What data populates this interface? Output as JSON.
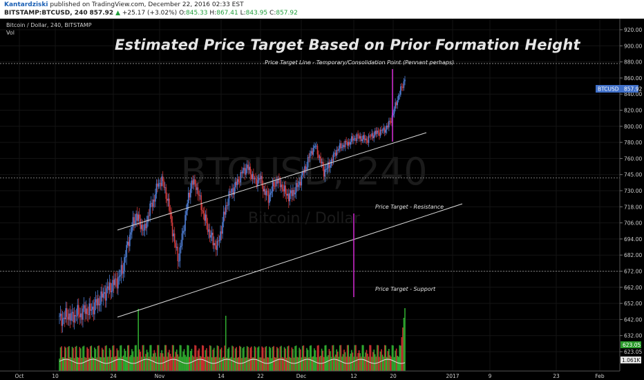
{
  "header": {
    "author": "Kantardziski",
    "published": "published on TradingView.com, December 22, 2016 02:33 EST",
    "symbol": "BITSTAMP:BTCUSD, 240",
    "last": "857.92",
    "change_arrow": "▲",
    "change": "+25.17 (+3.02%)",
    "o_label": "O:",
    "o_value": "845.33",
    "h_label": "H:",
    "h_value": "867.41",
    "l_label": "L:",
    "l_value": "843.95",
    "c_label": "C:",
    "c_value": "857.92"
  },
  "legend": {
    "title": "Bitcoin / Dollar, 240, BITSTAMP",
    "vol": "Vol"
  },
  "watermark": {
    "symbol": "BTCUSD, 240",
    "name": "Bitcoin / Dollar"
  },
  "annotations": {
    "main_title": "Estimated Price Target Based on Prior Formation Height",
    "target_line": "Price Target Line - Temporary/Consolidation Point (Pennant perhaps)",
    "resistance": "Price Target - Resistance",
    "support": "Price Target - Support"
  },
  "price_badge": {
    "symbol": "BTCUSD",
    "value": "857.92"
  },
  "vol_badges": {
    "green": "623.05",
    "white": "1.061K"
  },
  "colors": {
    "up": "#4f7fd6",
    "down": "#d03a3a",
    "vol_up": "#2fa82f",
    "vol_down": "#c62f2f",
    "channel": "#dcdcdc",
    "target": "#d62bd6",
    "badge": "#3f6fc8"
  },
  "chart_data": {
    "type": "candlestick",
    "y_ticks": [
      "920.00",
      "900.00",
      "880.00",
      "860.00",
      "840.00",
      "820.00",
      "800.00",
      "780.00",
      "760.00",
      "745.00",
      "730.00",
      "718.00",
      "706.00",
      "694.00",
      "682.00",
      "672.00",
      "662.00",
      "652.00",
      "642.00",
      "632.00",
      "623.05"
    ],
    "x_ticks": [
      "Oct",
      "10",
      "24",
      "Nov",
      "14",
      "22",
      "Dec",
      "12",
      "20",
      "2017",
      "9",
      "23",
      "Feb"
    ],
    "reference_levels": [
      878,
      742,
      672
    ],
    "last_price": 857.92,
    "closes": [
      642,
      643,
      645,
      643,
      646,
      645,
      648,
      647,
      650,
      653,
      656,
      660,
      662,
      665,
      668,
      675,
      690,
      703,
      712,
      705,
      700,
      715,
      722,
      735,
      740,
      728,
      712,
      690,
      680,
      700,
      720,
      738,
      735,
      722,
      710,
      700,
      692,
      688,
      702,
      718,
      728,
      733,
      740,
      748,
      752,
      745,
      738,
      742,
      730,
      725,
      733,
      740,
      735,
      728,
      726,
      730,
      735,
      745,
      755,
      768,
      776,
      760,
      748,
      752,
      760,
      770,
      775,
      778,
      780,
      785,
      787,
      785,
      783,
      788,
      791,
      793,
      795,
      800,
      812,
      830,
      845,
      858
    ]
  }
}
